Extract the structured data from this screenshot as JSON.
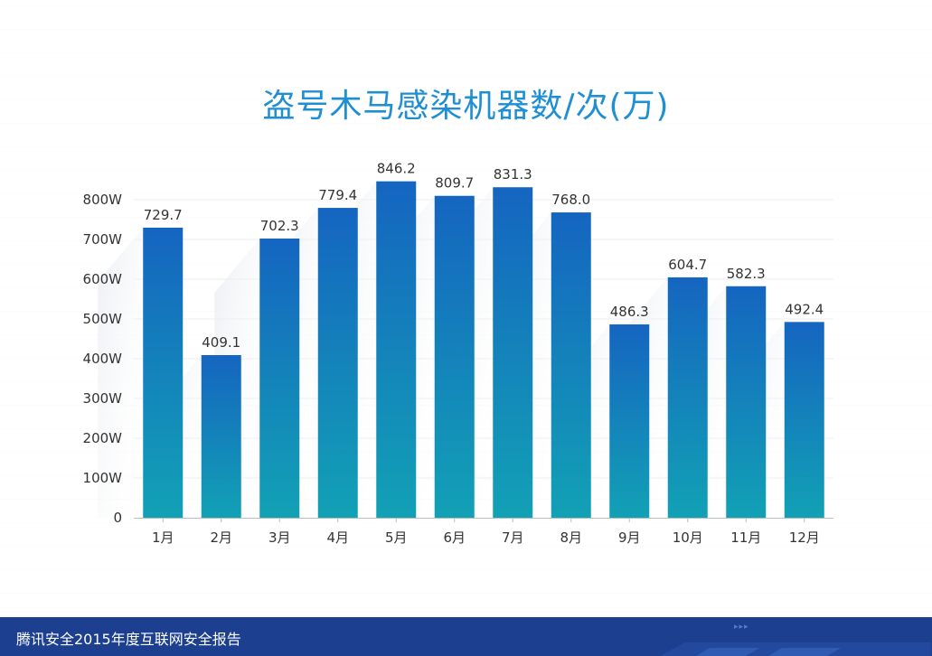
{
  "chart_data": {
    "type": "bar",
    "title": "盗号木马感染机器数/次(万)",
    "categories": [
      "1月",
      "2月",
      "3月",
      "4月",
      "5月",
      "6月",
      "7月",
      "8月",
      "9月",
      "10月",
      "11月",
      "12月"
    ],
    "values": [
      729.7,
      409.1,
      702.3,
      779.4,
      846.2,
      809.7,
      831.3,
      768.0,
      486.3,
      604.7,
      582.3,
      492.4
    ],
    "value_labels": [
      "729.7",
      "409.1",
      "702.3",
      "779.4",
      "846.2",
      "809.7",
      "831.3",
      "768.0",
      "486.3",
      "604.7",
      "582.3",
      "492.4"
    ],
    "y_ticks": [
      0,
      100,
      200,
      300,
      400,
      500,
      600,
      700,
      800
    ],
    "y_tick_labels": [
      "0",
      "100W",
      "200W",
      "300W",
      "400W",
      "500W",
      "600W",
      "700W",
      "800W"
    ],
    "ylim": [
      0,
      800
    ],
    "grid": true,
    "colors": {
      "bar_top": "#1565c0",
      "bar_bottom": "#12a1b5",
      "title": "#1f8fd3"
    }
  },
  "footer": {
    "text": "腾讯安全2015年度互联网安全报告",
    "color": "#1c3f8f"
  }
}
